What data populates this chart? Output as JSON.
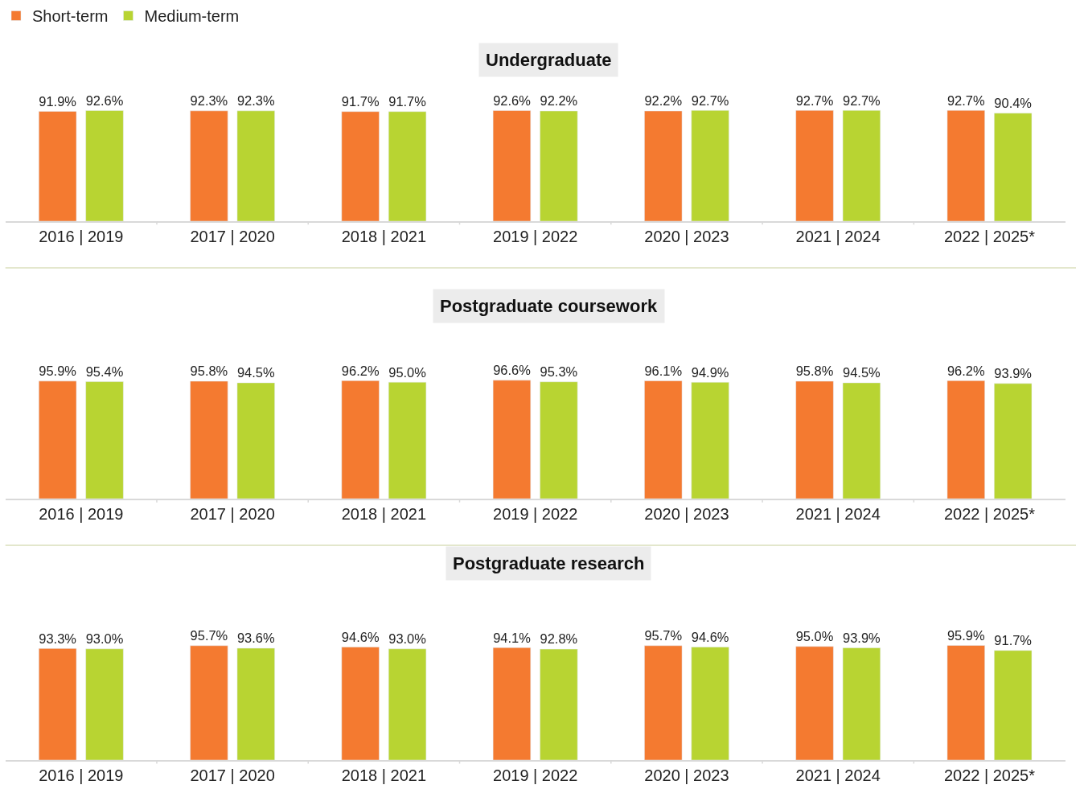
{
  "chart_data": [
    {
      "type": "bar",
      "title": "Undergraduate",
      "legend": "top left",
      "tick_labels": "x",
      "categories": [
        "2016 | 2019",
        "2017 | 2020",
        "2018 | 2021",
        "2019 | 2022",
        "2020 | 2023",
        "2021 | 2024",
        "2022 | 2025*"
      ],
      "series": [
        {
          "name": "Short-term",
          "color": "#f47a30",
          "values": [
            91.9,
            92.3,
            91.7,
            92.6,
            92.2,
            92.7,
            92.7
          ],
          "value_labels": [
            "91.9%",
            "92.3%",
            "91.7%",
            "92.6%",
            "92.2%",
            "92.7%",
            "92.7%"
          ]
        },
        {
          "name": "Medium-term",
          "color": "#b8d432",
          "values": [
            92.6,
            92.3,
            91.7,
            92.2,
            92.7,
            92.7,
            90.4
          ],
          "value_labels": [
            "92.6%",
            "92.3%",
            "91.7%",
            "92.2%",
            "92.7%",
            "92.7%",
            "90.4%"
          ]
        }
      ]
    },
    {
      "type": "bar",
      "title": "Postgraduate coursework",
      "tick_labels": "x",
      "categories": [
        "2016 | 2019",
        "2017 | 2020",
        "2018 | 2021",
        "2019 | 2022",
        "2020 | 2023",
        "2021 | 2024",
        "2022 | 2025*"
      ],
      "series": [
        {
          "color": "#f47a30",
          "values": [
            95.9,
            95.8,
            96.2,
            96.6,
            96.1,
            95.8,
            96.2
          ],
          "value_labels": [
            "95.9%",
            "95.8%",
            "96.2%",
            "96.6%",
            "96.1%",
            "95.8%",
            "96.2%"
          ]
        },
        {
          "color": "#b8d432",
          "values": [
            95.4,
            94.5,
            95.0,
            95.3,
            94.9,
            94.5,
            93.9
          ],
          "value_labels": [
            "95.4%",
            "94.5%",
            "95.0%",
            "95.3%",
            "94.9%",
            "94.5%",
            "93.9%"
          ]
        }
      ]
    },
    {
      "type": "bar",
      "title": "Postgraduate research",
      "tick_labels": "x",
      "categories": [
        "2016 | 2019",
        "2017 | 2020",
        "2018 | 2021",
        "2019 | 2022",
        "2020 | 2023",
        "2021 | 2024",
        "2022 | 2025*"
      ],
      "series": [
        {
          "color": "#f47a30",
          "values": [
            93.3,
            95.7,
            94.6,
            94.1,
            95.7,
            95.0,
            95.9
          ],
          "value_labels": [
            "93.3%",
            "95.7%",
            "94.6%",
            "94.1%",
            "95.7%",
            "95.0%",
            "95.9%"
          ]
        },
        {
          "color": "#b8d432",
          "values": [
            93.0,
            93.6,
            93.0,
            92.8,
            94.6,
            93.9,
            91.7
          ],
          "value_labels": [
            "93.0%",
            "93.6%",
            "93.0%",
            "92.8%",
            "94.6%",
            "93.9%",
            "91.7%"
          ]
        }
      ]
    }
  ]
}
